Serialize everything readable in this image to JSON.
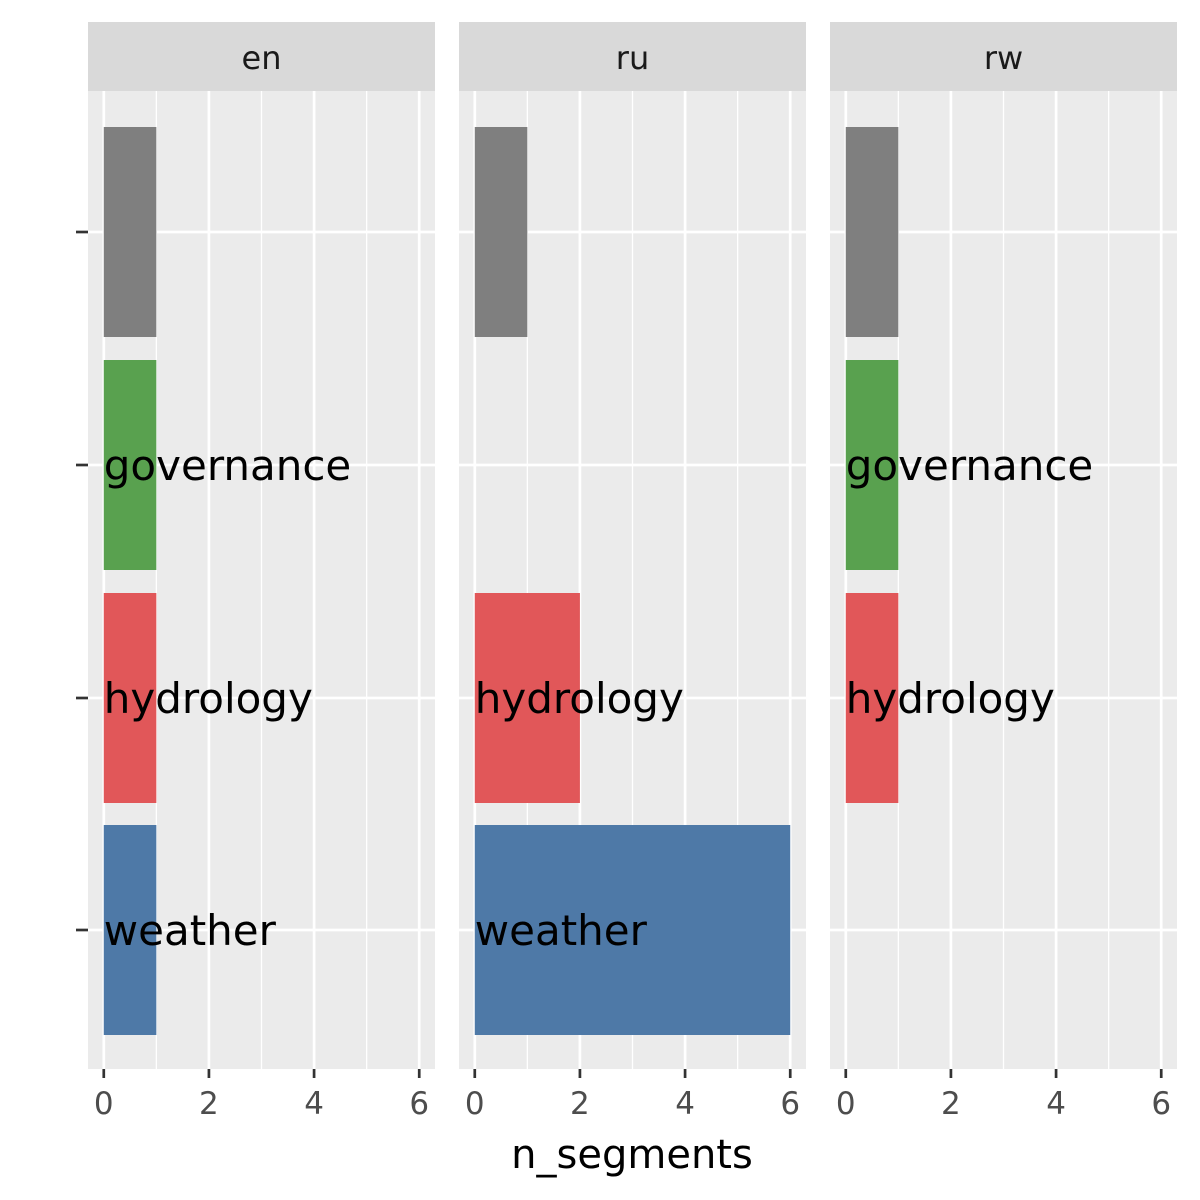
{
  "chart_data": {
    "type": "bar",
    "orientation": "horizontal",
    "xlabel": "n_segments",
    "ylabel": "",
    "xlim": [
      -0.3,
      6.3
    ],
    "x_ticks": [
      0,
      2,
      4,
      6
    ],
    "grid": true,
    "categories": [
      "",
      "governance",
      "hydrology",
      "weather"
    ],
    "category_colors": {
      "": "#7f7f7f",
      "governance": "#59a14f",
      "hydrology": "#e15759",
      "weather": "#4e79a7"
    },
    "facets": [
      {
        "name": "en",
        "bars": [
          {
            "category": "",
            "value": 1,
            "label": ""
          },
          {
            "category": "governance",
            "value": 1,
            "label": "governance"
          },
          {
            "category": "hydrology",
            "value": 1,
            "label": "hydrology"
          },
          {
            "category": "weather",
            "value": 1,
            "label": "weather"
          }
        ]
      },
      {
        "name": "ru",
        "bars": [
          {
            "category": "",
            "value": 1,
            "label": ""
          },
          {
            "category": "hydrology",
            "value": 2,
            "label": "hydrology"
          },
          {
            "category": "weather",
            "value": 6,
            "label": "weather"
          }
        ]
      },
      {
        "name": "rw",
        "bars": [
          {
            "category": "",
            "value": 1,
            "label": ""
          },
          {
            "category": "governance",
            "value": 1,
            "label": "governance"
          },
          {
            "category": "hydrology",
            "value": 1,
            "label": "hydrology"
          }
        ]
      }
    ],
    "colors": {
      "panel_background": "#ebebeb",
      "strip_background": "#d9d9d9",
      "grid": "#ffffff",
      "tick": "#333333"
    }
  }
}
